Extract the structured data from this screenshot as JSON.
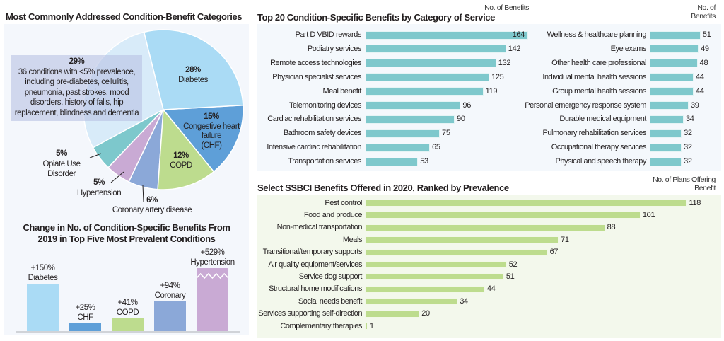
{
  "chart_data": [
    {
      "type": "pie",
      "title": "Most Commonly Addressed Condition-Benefit Categories",
      "slices": [
        {
          "label": "Diabetes",
          "value": 28,
          "pct": "28%",
          "color": "#aadbf5"
        },
        {
          "label": "Congestive heart failure (CHF)",
          "lines": [
            "Congestive heart",
            "failure",
            "(CHF)"
          ],
          "value": 15,
          "pct": "15%",
          "color": "#5e9fd8"
        },
        {
          "label": "COPD",
          "value": 12,
          "pct": "12%",
          "color": "#bddc8e"
        },
        {
          "label": "Coronary artery disease",
          "value": 6,
          "pct": "6%",
          "color": "#8ba8d8"
        },
        {
          "label": "Hypertension",
          "value": 5,
          "pct": "5%",
          "color": "#c9aad4"
        },
        {
          "label": "Opiate Use Disorder",
          "lines": [
            "Opiate Use",
            "Disorder"
          ],
          "value": 5,
          "pct": "5%",
          "color": "#7dc8cc"
        },
        {
          "label": "36 conditions with <5% prevalence, including pre-diabetes, cellulitis, pneumonia, past strokes, mood disorders, history of falls, hip replacement, blindness and dementia",
          "lines": [
            "36 conditions with <5% prevalence,",
            "including pre-diabetes, cellulitis,",
            "pneumonia, past strokes, mood",
            "disorders, history of falls, hip",
            "replacement, blindness and dementia"
          ],
          "value": 29,
          "pct": "29%",
          "color": "#d8ebf9"
        }
      ]
    },
    {
      "type": "bar",
      "title": "Change in No. of Condition-Specific Benefits From 2019 in Top Five Most Prevalent Conditions",
      "title_lines": [
        "Change in No. of Condition-Specific Benefits From",
        "2019 in Top Five Most Prevalent Conditions"
      ],
      "categories": [
        "Diabetes",
        "CHF",
        "COPD",
        "Coronary",
        "Hypertension"
      ],
      "values": [
        150,
        25,
        41,
        94,
        529
      ],
      "value_labels": [
        "+150%",
        "+25%",
        "+41%",
        "+94%",
        "+529%"
      ],
      "colors": [
        "#aadbf5",
        "#5e9fd8",
        "#bddc8e",
        "#8ba8d8",
        "#c9aad4"
      ],
      "axis_break": "Hypertension"
    },
    {
      "type": "bar",
      "orientation": "horizontal",
      "title": "Top 20 Condition-Specific Benefits by Category of Service",
      "value_header": "No. of Benefits",
      "color": "#7ec8cc",
      "columns": [
        {
          "categories": [
            "Part D VBID rewards",
            "Podiatry services",
            "Remote access technologies",
            "Physician specialist services",
            "Meal benefit",
            "Telemonitoring devices",
            "Cardiac rehabilitation services",
            "Bathroom safety devices",
            "Intensive cardiac rehabilitation",
            "Transportation services"
          ],
          "values": [
            164,
            142,
            132,
            125,
            119,
            96,
            90,
            75,
            65,
            53
          ]
        },
        {
          "categories": [
            "Wellness & healthcare planning",
            "Eye exams",
            "Other health care professional",
            "Individual mental health sessions",
            "Group mental health sessions",
            "Personal emergency response system",
            "Durable medical equipment",
            "Pulmonary rehabilitation services",
            "Occupational therapy services",
            "Physical and speech therapy"
          ],
          "values": [
            51,
            49,
            48,
            44,
            44,
            39,
            34,
            32,
            32,
            32
          ]
        }
      ]
    },
    {
      "type": "bar",
      "orientation": "horizontal",
      "title": "Select SSBCI Benefits Offered in 2020, Ranked by Prevalence",
      "value_header": "No. of Plans Offering Benefit",
      "color": "#bddc8e",
      "categories": [
        "Pest control",
        "Food and produce",
        "Non-medical transportation",
        "Meals",
        "Transitional/temporary supports",
        "Air quality equipment/services",
        "Service dog support",
        "Structural home modifications",
        "Social needs benefit",
        "Services supporting self-direction",
        "Complementary therapies"
      ],
      "values": [
        118,
        101,
        88,
        71,
        67,
        52,
        51,
        44,
        34,
        20,
        1
      ]
    }
  ]
}
